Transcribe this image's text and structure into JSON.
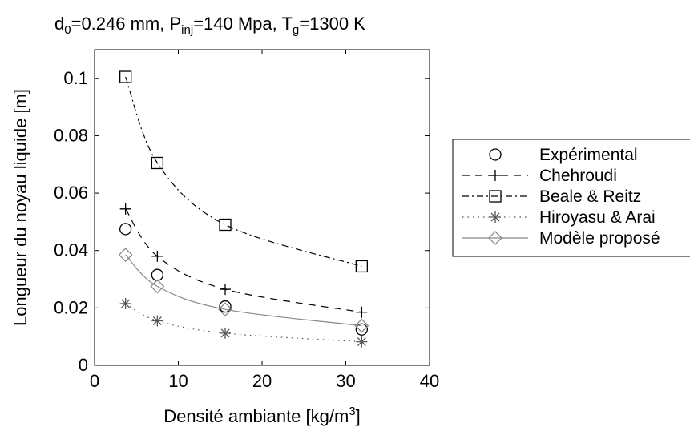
{
  "chart_data": {
    "type": "line",
    "title": {
      "parts": [
        {
          "text": "d"
        },
        {
          "text": "0",
          "sub": true
        },
        {
          "text": "=0.246 mm, P"
        },
        {
          "text": "inj",
          "sub": true
        },
        {
          "text": "=140 Mpa, T"
        },
        {
          "text": "g",
          "sub": true
        },
        {
          "text": "=1300 K"
        }
      ]
    },
    "xlabel": {
      "parts": [
        {
          "text": "Densité ambiante [kg/m"
        },
        {
          "text": "3",
          "sup": true
        },
        {
          "text": "]"
        }
      ]
    },
    "ylabel": "Longueur du noyau liquide [m]",
    "xlim": [
      0,
      40
    ],
    "ylim": [
      0,
      0.11
    ],
    "xticks": [
      "0",
      "10",
      "20",
      "30",
      "40"
    ],
    "yticks": [
      "0",
      "0.02",
      "0.04",
      "0.06",
      "0.08",
      "0.1"
    ],
    "grid": false,
    "legend_position": "right",
    "series": [
      {
        "name": "Expérimental",
        "marker": "circle",
        "line": "none",
        "color": "#000000",
        "x": [
          3.7,
          7.5,
          15.6,
          31.9
        ],
        "y": [
          0.0475,
          0.0315,
          0.0205,
          0.0125
        ]
      },
      {
        "name": "Chehroudi",
        "marker": "plus",
        "line": "dashed",
        "color": "#000000",
        "x": [
          3.7,
          7.5,
          15.6,
          31.9
        ],
        "y": [
          0.0545,
          0.038,
          0.0265,
          0.0185
        ]
      },
      {
        "name": "Beale & Reitz",
        "marker": "square",
        "line": "dashdot",
        "color": "#000000",
        "x": [
          3.7,
          7.5,
          15.6,
          31.9
        ],
        "y": [
          0.1005,
          0.0705,
          0.049,
          0.0345
        ]
      },
      {
        "name": "Hiroyasu & Arai",
        "marker": "asterisk",
        "line": "dotted",
        "color": "#555555",
        "x": [
          3.7,
          7.5,
          15.6,
          31.9
        ],
        "y": [
          0.0215,
          0.0155,
          0.0112,
          0.0082
        ]
      },
      {
        "name": "Modèle proposé",
        "marker": "diamond",
        "line": "solid",
        "color": "#888888",
        "x": [
          3.7,
          7.5,
          15.6,
          31.9
        ],
        "y": [
          0.0385,
          0.0275,
          0.0195,
          0.0138
        ]
      }
    ]
  }
}
